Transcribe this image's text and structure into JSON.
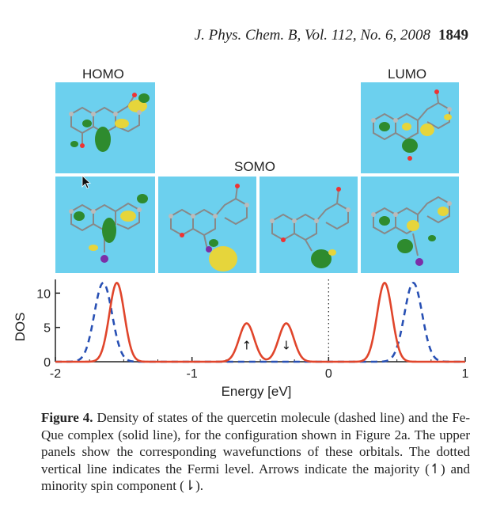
{
  "header": {
    "journal": "J. Phys. Chem. B, Vol. 112, No. 6, 2008",
    "page": "1849"
  },
  "panels": {
    "homo_label": "HOMO",
    "somo_label": "SOMO",
    "lumo_label": "LUMO"
  },
  "chart_data": {
    "type": "line",
    "xlabel": "Energy [eV]",
    "ylabel": "DOS",
    "xlim": [
      -2,
      1
    ],
    "ylim": [
      0,
      12
    ],
    "xticks": [
      "-2",
      "-1",
      "0",
      "1"
    ],
    "yticks": [
      "0",
      "5",
      "10"
    ],
    "fermi_level": 0,
    "series": [
      {
        "style": "dashed",
        "color": "#2850b4",
        "peaks": [
          {
            "x": -1.65,
            "height": 11.5,
            "sigma": 0.065
          },
          {
            "x": 0.62,
            "height": 11.5,
            "sigma": 0.065
          }
        ]
      },
      {
        "style": "solid",
        "color": "#e0452b",
        "peaks": [
          {
            "x": -1.55,
            "height": 11.5,
            "sigma": 0.055
          },
          {
            "x": -0.6,
            "height": 5.6,
            "sigma": 0.055
          },
          {
            "x": -0.31,
            "height": 5.6,
            "sigma": 0.055
          },
          {
            "x": 0.41,
            "height": 11.5,
            "sigma": 0.055
          }
        ]
      }
    ],
    "annotations": [
      {
        "x": -0.6,
        "symbol": "↑"
      },
      {
        "x": -0.31,
        "symbol": "↓"
      }
    ]
  },
  "caption": {
    "label": "Figure 4.",
    "text": "Density of states of the quercetin molecule (dashed line) and the Fe-Que complex (solid line), for the configuration shown in Figure 2a. The upper panels show the corresponding wavefunctions of these orbitals. The dotted vertical line indicates the Fermi level. Arrows indicate the majority (↿) and minority spin component (⇂)."
  }
}
